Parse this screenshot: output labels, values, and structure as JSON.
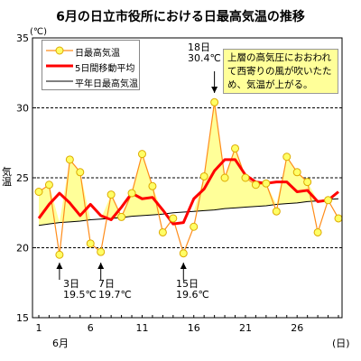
{
  "header": {
    "title": "6月の日立市役所における日最高気温の推移",
    "unit_label": "(℃)",
    "y_axis_label": "気温",
    "x_axis_unit": "(日)",
    "month_label": "6月"
  },
  "note": {
    "text": "上層の高気圧におおわれて西寄りの風が吹いたため、気温が上がる。"
  },
  "legend": {
    "daily_max": "日最高気温",
    "moving_avg": "5日間移動平均",
    "normal": "平年日最高気温"
  },
  "annotations": [
    {
      "day_label": "3日",
      "value_label": "19.5℃"
    },
    {
      "day_label": "7日",
      "value_label": "19.7℃"
    },
    {
      "day_label": "15日",
      "value_label": "19.6℃"
    },
    {
      "day_label": "18日",
      "value_label": "30.4℃"
    }
  ],
  "colors": {
    "daily_line": "#ff8c1a",
    "marker_fill": "#ffff66",
    "marker_stroke": "#ddaa00",
    "moving_avg": "#ff0000",
    "normal_line": "#000000",
    "area_fill": "#ffff99",
    "grid": "#000000"
  },
  "chart_data": {
    "type": "line",
    "x": [
      1,
      2,
      3,
      4,
      5,
      6,
      7,
      8,
      9,
      10,
      11,
      12,
      13,
      14,
      15,
      16,
      17,
      18,
      19,
      20,
      21,
      22,
      23,
      24,
      25,
      26,
      27,
      28,
      29,
      30
    ],
    "x_ticks": [
      1,
      6,
      11,
      16,
      21,
      26
    ],
    "y_ticks": [
      15,
      20,
      25,
      30,
      35
    ],
    "xlim": [
      1,
      30
    ],
    "ylim": [
      15,
      35
    ],
    "grid": "dashed horizontal at 20, 25, 30",
    "series": [
      {
        "name": "日最高気温",
        "values": [
          24.0,
          24.5,
          19.5,
          26.3,
          25.4,
          20.3,
          19.7,
          23.8,
          22.2,
          23.9,
          26.7,
          24.4,
          21.1,
          22.1,
          19.6,
          21.5,
          25.1,
          30.4,
          25.0,
          27.1,
          25.0,
          24.5,
          24.6,
          22.6,
          26.5,
          25.4,
          24.7,
          21.1,
          23.4,
          22.1
        ]
      },
      {
        "name": "5日間移動平均",
        "values": [
          22.1,
          23.1,
          23.9,
          23.2,
          22.3,
          23.1,
          22.3,
          22.0,
          22.9,
          23.9,
          23.5,
          23.6,
          22.7,
          21.7,
          21.8,
          23.5,
          24.2,
          25.5,
          26.3,
          26.3,
          25.2,
          24.7,
          24.6,
          24.7,
          24.7,
          24.0,
          24.1,
          23.3,
          23.4,
          24.0
        ]
      },
      {
        "name": "平年日最高気温",
        "values": [
          21.6,
          21.7,
          21.8,
          21.85,
          21.9,
          22.0,
          22.05,
          22.1,
          22.15,
          22.25,
          22.3,
          22.35,
          22.4,
          22.5,
          22.55,
          22.6,
          22.65,
          22.7,
          22.8,
          22.85,
          22.9,
          22.95,
          23.0,
          23.1,
          23.15,
          23.2,
          23.3,
          23.35,
          23.45,
          23.5
        ]
      }
    ]
  }
}
